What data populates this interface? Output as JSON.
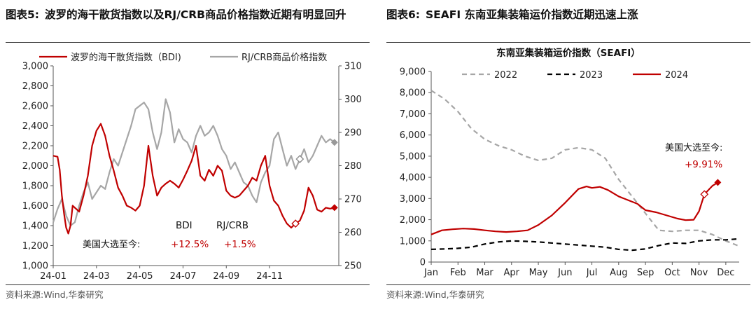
{
  "left": {
    "figure_number": "图表5:",
    "title": "波罗的海干散货指数以及RJ/CRB商品价格指数近期有明显回升",
    "source": "资料来源:Wind,华泰研究"
  },
  "right": {
    "figure_number": "图表6:",
    "title": "SEAFI 东南亚集装箱运价指数近期迅速上涨",
    "source": "资料来源:Wind,华泰研究"
  },
  "chart_data": [
    {
      "type": "line",
      "title": "",
      "x_ticks": [
        "24-01",
        "24-03",
        "24-05",
        "24-07",
        "24-09",
        "24-11"
      ],
      "y_left": {
        "ticks": [
          "1,000",
          "1,200",
          "1,400",
          "1,600",
          "1,800",
          "2,000",
          "2,200",
          "2,400",
          "2,600",
          "2,800",
          "3,000"
        ],
        "ylim": [
          1000,
          3000
        ]
      },
      "y_right": {
        "ticks": [
          "250",
          "260",
          "270",
          "280",
          "290",
          "300",
          "310"
        ],
        "ylim": [
          250,
          310
        ]
      },
      "legend_placement": "top",
      "grid": false,
      "series": [
        {
          "name": "波罗的海干散货指数（BDI)",
          "axis": "left",
          "color": "#c00000",
          "x": [
            0,
            0.2,
            0.3,
            0.4,
            0.5,
            0.6,
            0.7,
            0.8,
            0.9,
            1.0,
            1.2,
            1.4,
            1.6,
            1.8,
            2.0,
            2.2,
            2.4,
            2.6,
            2.8,
            3.0,
            3.2,
            3.4,
            3.6,
            3.8,
            4.0,
            4.2,
            4.4,
            4.6,
            4.8,
            5.0,
            5.2,
            5.4,
            5.6,
            5.8,
            6.0,
            6.2,
            6.4,
            6.6,
            6.8,
            7.0,
            7.2,
            7.4,
            7.6,
            7.8,
            8.0,
            8.2,
            8.4,
            8.6,
            8.8,
            9.0,
            9.2,
            9.4,
            9.6,
            9.8,
            10.0,
            10.2,
            10.4,
            10.6,
            10.8,
            11.0,
            11.2,
            11.4,
            11.6,
            11.8,
            12.0,
            12.2,
            12.4,
            12.6,
            12.8,
            13.0
          ],
          "y": [
            2100,
            2090,
            1960,
            1700,
            1520,
            1380,
            1320,
            1400,
            1600,
            1580,
            1540,
            1700,
            1900,
            2200,
            2350,
            2420,
            2300,
            2100,
            1950,
            1780,
            1700,
            1600,
            1580,
            1550,
            1600,
            1800,
            2200,
            1900,
            1700,
            1780,
            1820,
            1850,
            1820,
            1780,
            1860,
            1950,
            2050,
            2200,
            1900,
            1850,
            1960,
            1900,
            2000,
            1950,
            1750,
            1700,
            1680,
            1700,
            1750,
            1800,
            1880,
            1850,
            2000,
            2100,
            1800,
            1650,
            1600,
            1500,
            1420,
            1380,
            1420,
            1450,
            1550,
            1780,
            1700,
            1560,
            1540,
            1580,
            1570,
            1580
          ],
          "annotation": "+12.5%"
        },
        {
          "name": "RJ/CRB商品价格指数",
          "axis": "right",
          "color": "#a6a6a6",
          "x": [
            0,
            0.2,
            0.4,
            0.6,
            0.8,
            1.0,
            1.2,
            1.4,
            1.6,
            1.8,
            2.0,
            2.2,
            2.4,
            2.6,
            2.8,
            3.0,
            3.2,
            3.4,
            3.6,
            3.8,
            4.0,
            4.2,
            4.4,
            4.6,
            4.8,
            5.0,
            5.2,
            5.4,
            5.6,
            5.8,
            6.0,
            6.2,
            6.4,
            6.6,
            6.8,
            7.0,
            7.2,
            7.4,
            7.6,
            7.8,
            8.0,
            8.2,
            8.4,
            8.6,
            8.8,
            9.0,
            9.2,
            9.4,
            9.6,
            9.8,
            10.0,
            10.2,
            10.4,
            10.6,
            10.8,
            11.0,
            11.2,
            11.4,
            11.6,
            11.8,
            12.0,
            12.2,
            12.4,
            12.6,
            12.8,
            13.0
          ],
          "y": [
            263,
            267,
            270,
            265,
            262,
            263,
            268,
            272,
            275,
            270,
            272,
            274,
            273,
            278,
            282,
            280,
            284,
            288,
            292,
            297,
            298,
            299,
            297,
            290,
            285,
            290,
            300,
            296,
            287,
            291,
            288,
            287,
            284,
            289,
            292,
            289,
            290,
            292,
            289,
            285,
            283,
            279,
            281,
            278,
            275,
            274,
            271,
            269,
            275,
            278,
            280,
            288,
            290,
            285,
            280,
            283,
            279,
            282,
            285,
            281,
            283,
            286,
            289,
            287,
            288,
            287
          ],
          "annotation": "+1.5%"
        }
      ],
      "annotation_label": "美国大选至今:",
      "annotation_headers": [
        "BDI",
        "RJ/CRB"
      ]
    },
    {
      "type": "line",
      "title": "东南亚集装箱运价指数（SEAFI）",
      "categories": [
        "Jan",
        "Feb",
        "Mar",
        "Apr",
        "May",
        "Jun",
        "Jul",
        "Aug",
        "Sep",
        "Oct",
        "Nov",
        "Dec"
      ],
      "y_ticks": [
        "0",
        "1,000",
        "2,000",
        "3,000",
        "4,000",
        "5,000",
        "6,000",
        "7,000",
        "8,000",
        "9,000"
      ],
      "ylim": [
        0,
        9000
      ],
      "legend_placement": "top",
      "grid": false,
      "series": [
        {
          "name": "2022",
          "color": "#a6a6a6",
          "dash": "dashed",
          "x": [
            0,
            0.5,
            1.0,
            1.5,
            2.0,
            2.5,
            3.0,
            3.5,
            4.0,
            4.5,
            5.0,
            5.5,
            6.0,
            6.5,
            7.0,
            7.5,
            8.0,
            8.5,
            9.0,
            9.5,
            10.0,
            10.5,
            11.0,
            11.5
          ],
          "y": [
            8100,
            7700,
            7100,
            6300,
            5800,
            5500,
            5300,
            5000,
            4800,
            4900,
            5300,
            5400,
            5300,
            4900,
            3900,
            3100,
            2300,
            1500,
            1450,
            1500,
            1500,
            1300,
            1000,
            750
          ]
        },
        {
          "name": "2023",
          "color": "#000000",
          "dash": "dashed",
          "x": [
            0,
            0.5,
            1.0,
            1.5,
            2.0,
            2.5,
            3.0,
            3.5,
            4.0,
            4.5,
            5.0,
            5.5,
            6.0,
            6.5,
            7.0,
            7.5,
            8.0,
            8.5,
            9.0,
            9.5,
            10.0,
            10.5,
            11.0,
            11.5
          ],
          "y": [
            600,
            620,
            650,
            700,
            850,
            950,
            1000,
            980,
            950,
            900,
            850,
            800,
            750,
            700,
            600,
            560,
            620,
            780,
            900,
            880,
            1000,
            1050,
            1050,
            1100
          ]
        },
        {
          "name": "2024",
          "color": "#c00000",
          "dash": "solid",
          "x": [
            0,
            0.4,
            0.8,
            1.2,
            1.6,
            2.0,
            2.4,
            2.8,
            3.2,
            3.6,
            4.0,
            4.5,
            5.0,
            5.5,
            5.8,
            6.0,
            6.3,
            6.6,
            7.0,
            7.4,
            7.7,
            8.0,
            8.4,
            8.8,
            9.2,
            9.5,
            9.8,
            10.0,
            10.2,
            10.5,
            10.7
          ],
          "y": [
            1300,
            1500,
            1550,
            1580,
            1560,
            1500,
            1450,
            1420,
            1450,
            1500,
            1750,
            2200,
            2800,
            3450,
            3570,
            3500,
            3550,
            3400,
            3100,
            2900,
            2750,
            2450,
            2350,
            2200,
            2050,
            1980,
            2000,
            2400,
            3200,
            3600,
            3760
          ]
        }
      ],
      "annotation_label": "美国大选至今:",
      "annotation_value": "+9.91%"
    }
  ]
}
